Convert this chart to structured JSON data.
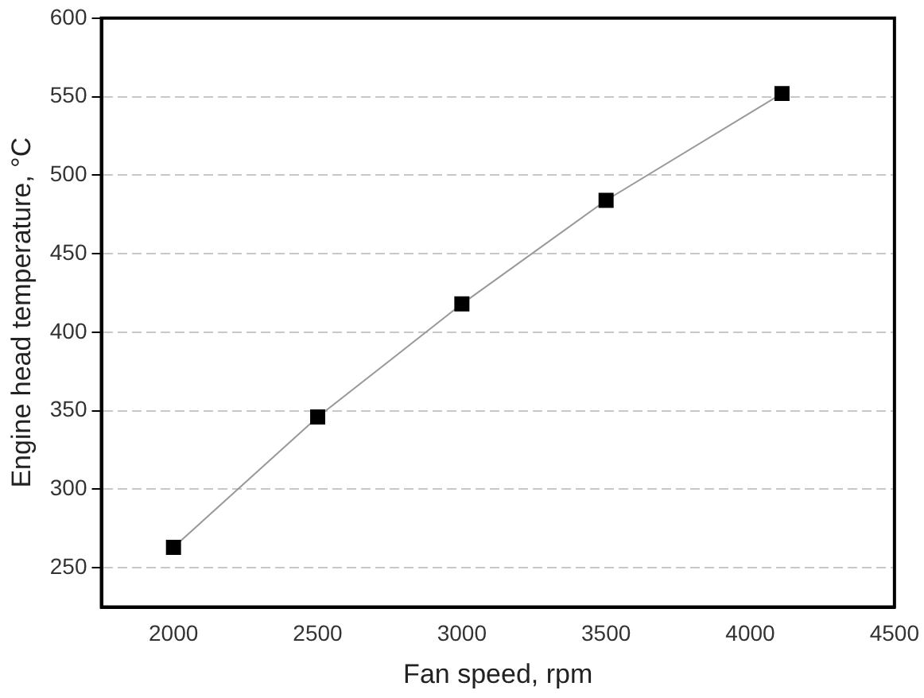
{
  "chart_data": {
    "type": "line",
    "xlabel": "Fan speed, rpm",
    "ylabel": "Engine head temperature, °C",
    "x": [
      2000,
      2500,
      3000,
      3500,
      4110
    ],
    "series": [
      {
        "color": "#000000",
        "values": [
          263,
          346,
          418,
          484,
          552
        ]
      }
    ],
    "xlim": [
      1750,
      4500
    ],
    "xticks": [
      2000,
      2500,
      3000,
      3500,
      4000,
      4500
    ],
    "ylim": [
      225,
      600
    ],
    "yticks": [
      250,
      300,
      350,
      400,
      450,
      500,
      550,
      600
    ],
    "grid": "y",
    "legend": false,
    "marker": "square",
    "line_style": "solid"
  }
}
